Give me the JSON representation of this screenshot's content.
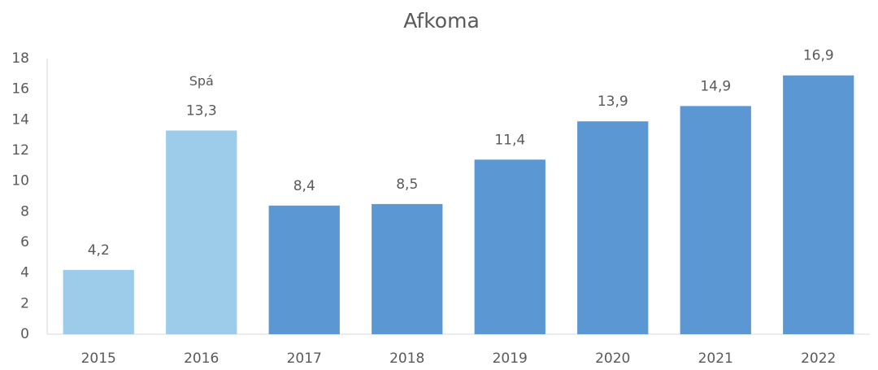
{
  "chart_data": {
    "type": "bar",
    "title": "Afkoma",
    "categories": [
      "2015",
      "2016",
      "2017",
      "2018",
      "2019",
      "2020",
      "2021",
      "2022"
    ],
    "values": [
      4.2,
      13.3,
      8.4,
      8.5,
      11.4,
      13.9,
      14.9,
      16.9
    ],
    "value_labels": [
      "4,2",
      "13,3",
      "8,4",
      "8,5",
      "11,4",
      "13,9",
      "14,9",
      "16,9"
    ],
    "colors": [
      "#9dcbea",
      "#9dcbea",
      "#5b97d3",
      "#5b97d3",
      "#5b97d3",
      "#5b97d3",
      "#5b97d3",
      "#5b97d3"
    ],
    "annotations": [
      {
        "text": "Spá",
        "x": "2016"
      }
    ],
    "ylim": [
      0,
      18
    ],
    "yticks": [
      0,
      2,
      4,
      6,
      8,
      10,
      12,
      14,
      16,
      18
    ],
    "grid": false
  }
}
